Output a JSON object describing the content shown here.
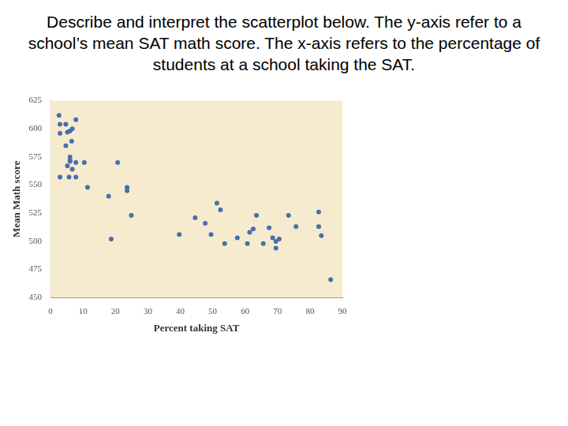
{
  "heading": "Describe and interpret the scatterplot below. The y-axis refer to a school’s mean SAT math score. The x-axis refers to the percentage of students at a school taking the SAT.",
  "chart_data": {
    "type": "scatter",
    "x_label": "Percent taking SAT",
    "y_label": "Mean Math score",
    "x": [
      2.6,
      2.9,
      4.7,
      6.7,
      7.8,
      2.9,
      5.2,
      6.0,
      6.5,
      4.7,
      5.2,
      6.0,
      6.0,
      6.0,
      7.8,
      6.7,
      2.9,
      5.7,
      7.8,
      10.4,
      11.4,
      17.9,
      20.7,
      23.6,
      23.6,
      24.9,
      18.7,
      39.7,
      44.6,
      47.7,
      49.5,
      51.3,
      52.4,
      53.7,
      57.6,
      60.7,
      61.4,
      62.5,
      63.5,
      65.6,
      67.4,
      68.5,
      69.5,
      69.5,
      70.5,
      73.4,
      75.7,
      82.7,
      82.7,
      83.5,
      86.4
    ],
    "values": [
      612,
      604,
      604,
      600,
      608,
      596,
      597,
      598,
      589,
      585,
      567,
      575,
      572,
      571,
      570,
      564,
      557,
      557,
      557,
      570,
      548,
      540,
      570,
      548,
      545,
      523,
      502,
      506,
      521,
      516,
      506,
      534,
      528,
      498,
      503,
      498,
      508,
      511,
      523,
      498,
      512,
      503,
      494,
      500,
      502,
      523,
      513,
      526,
      513,
      505,
      466
    ],
    "color": "#4a6db0",
    "marker": "circle",
    "xlim": [
      0,
      90
    ],
    "xticks": [
      0,
      10,
      20,
      30,
      40,
      50,
      60,
      70,
      80,
      90
    ],
    "ylim": [
      450,
      625
    ],
    "yticks": [
      450,
      475,
      500,
      525,
      550,
      575,
      600,
      625
    ],
    "grid": false
  }
}
